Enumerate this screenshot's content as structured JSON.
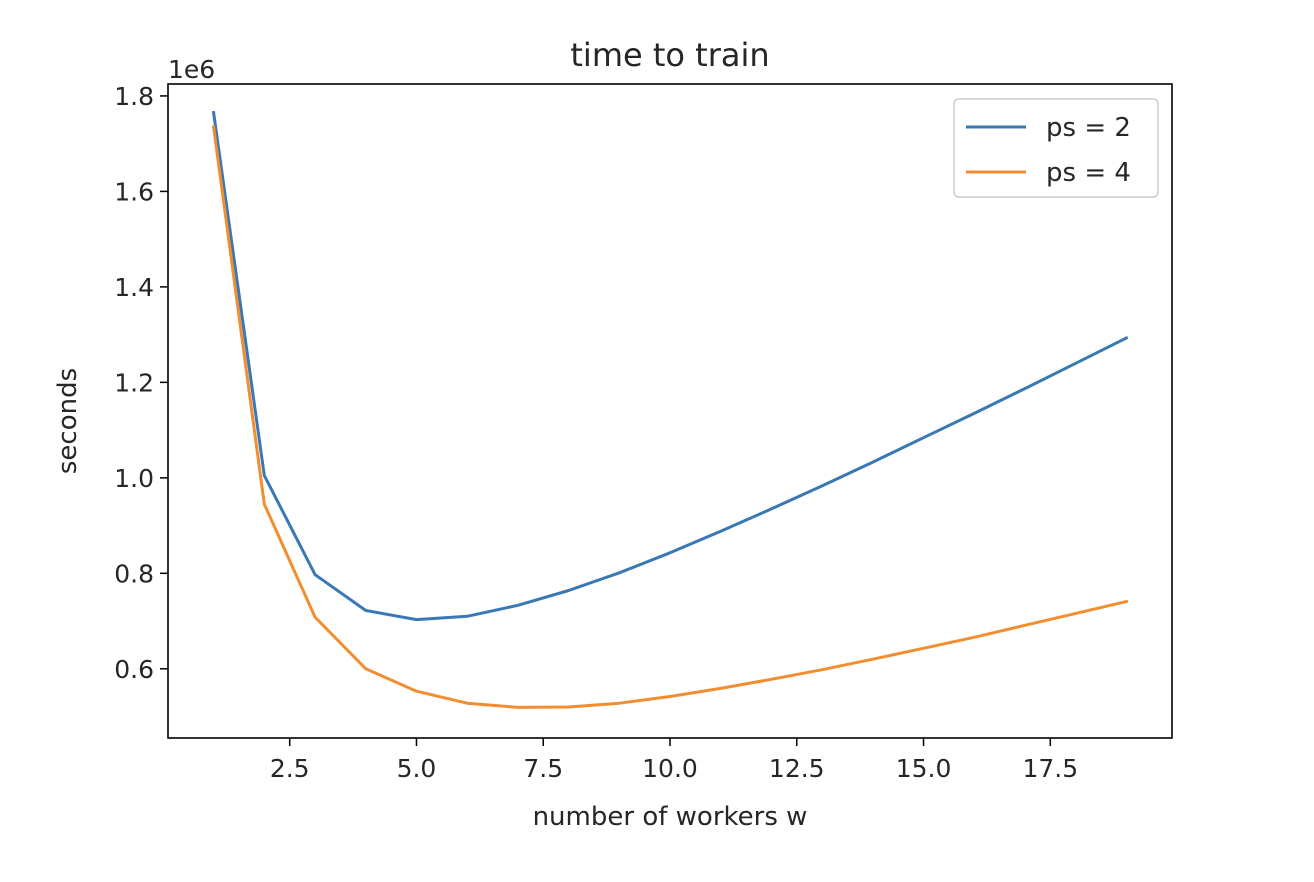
{
  "chart_data": {
    "type": "line",
    "title": "time to train",
    "xlabel": "number of workers w",
    "ylabel": "seconds",
    "y_offset_label": "1e6",
    "xlim": [
      0.1,
      19.9
    ],
    "ylim": [
      0.455,
      1.825
    ],
    "xticks": [
      2.5,
      5.0,
      7.5,
      10.0,
      12.5,
      15.0,
      17.5
    ],
    "xtick_labels": [
      "2.5",
      "5.0",
      "7.5",
      "10.0",
      "12.5",
      "15.0",
      "17.5"
    ],
    "yticks": [
      0.6,
      0.8,
      1.0,
      1.2,
      1.4,
      1.6,
      1.8
    ],
    "ytick_labels": [
      "0.6",
      "0.8",
      "1.0",
      "1.2",
      "1.4",
      "1.6",
      "1.8"
    ],
    "grid": false,
    "legend_position": "top-right",
    "x": [
      1,
      2,
      3,
      4,
      5,
      6,
      7,
      8,
      9,
      10,
      11,
      12,
      13,
      14,
      15,
      16,
      17,
      18,
      19
    ],
    "series": [
      {
        "name": "ps = 2",
        "color": "#3a78b5",
        "values": [
          1.765,
          1.005,
          0.797,
          0.722,
          0.703,
          0.71,
          0.733,
          0.764,
          0.801,
          0.843,
          0.888,
          0.935,
          0.983,
          1.033,
          1.084,
          1.135,
          1.187,
          1.24,
          1.293
        ]
      },
      {
        "name": "ps = 4",
        "color": "#f28e30",
        "values": [
          1.735,
          0.945,
          0.708,
          0.6,
          0.553,
          0.528,
          0.519,
          0.52,
          0.528,
          0.542,
          0.559,
          0.578,
          0.598,
          0.62,
          0.643,
          0.666,
          0.691,
          0.716,
          0.741
        ]
      }
    ]
  }
}
